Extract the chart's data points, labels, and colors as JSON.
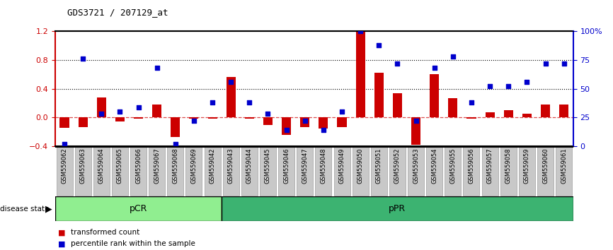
{
  "title": "GDS3721 / 207129_at",
  "samples": [
    "GSM559062",
    "GSM559063",
    "GSM559064",
    "GSM559065",
    "GSM559066",
    "GSM559067",
    "GSM559068",
    "GSM559069",
    "GSM559042",
    "GSM559043",
    "GSM559044",
    "GSM559045",
    "GSM559046",
    "GSM559047",
    "GSM559048",
    "GSM559049",
    "GSM559050",
    "GSM559051",
    "GSM559052",
    "GSM559053",
    "GSM559054",
    "GSM559055",
    "GSM559056",
    "GSM559057",
    "GSM559058",
    "GSM559059",
    "GSM559060",
    "GSM559061"
  ],
  "bar_values": [
    -0.14,
    -0.13,
    0.28,
    -0.06,
    -0.02,
    0.18,
    -0.27,
    -0.02,
    -0.02,
    0.56,
    -0.02,
    -0.1,
    -0.24,
    -0.13,
    -0.15,
    -0.13,
    1.2,
    0.62,
    0.34,
    -0.38,
    0.6,
    0.27,
    -0.02,
    0.07,
    0.1,
    0.05,
    0.18,
    0.18
  ],
  "dot_values_pct": [
    2,
    76,
    28,
    30,
    34,
    68,
    2,
    22,
    38,
    56,
    38,
    28,
    14,
    22,
    14,
    30,
    100,
    88,
    72,
    22,
    68,
    78,
    38,
    52,
    52,
    56,
    72,
    72
  ],
  "groups": [
    {
      "label": "pCR",
      "start": 0,
      "end": 9,
      "color": "#90ee90"
    },
    {
      "label": "pPR",
      "start": 9,
      "end": 28,
      "color": "#3cb371"
    }
  ],
  "bar_color": "#cc0000",
  "dot_color": "#0000cc",
  "ylim_left": [
    -0.4,
    1.2
  ],
  "ylim_right": [
    0,
    100
  ],
  "yticks_left": [
    -0.4,
    0.0,
    0.4,
    0.8,
    1.2
  ],
  "yticks_right": [
    0,
    25,
    50,
    75,
    100
  ],
  "ytick_labels_right": [
    "0",
    "25",
    "50",
    "75",
    "100%"
  ],
  "hlines": [
    0.4,
    0.8
  ],
  "zero_line": 0.0,
  "background_color": "#ffffff",
  "gray_box_color": "#c8c8c8",
  "gray_box_edge": "#aaaaaa"
}
